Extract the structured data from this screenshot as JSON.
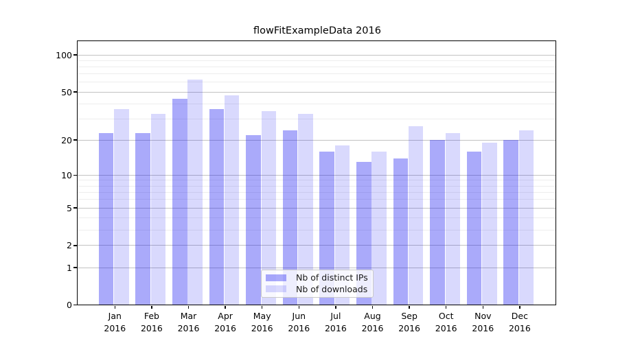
{
  "title": "flowFitExampleData 2016",
  "chart_data": {
    "type": "bar",
    "title": "flowFitExampleData 2016",
    "yscale": "log1p",
    "categories": [
      "Jan",
      "Feb",
      "Mar",
      "Apr",
      "May",
      "Jun",
      "Jul",
      "Aug",
      "Sep",
      "Oct",
      "Nov",
      "Dec"
    ],
    "category_year": "2016",
    "series": [
      {
        "name": "Nb of distinct IPs",
        "values": [
          23,
          23,
          44,
          36,
          22,
          24,
          16,
          13,
          14,
          20,
          16,
          20
        ],
        "color": "rgba(20,20,240,0.36)"
      },
      {
        "name": "Nb of downloads",
        "values": [
          36,
          33,
          63,
          47,
          35,
          33,
          18,
          16,
          26,
          23,
          19,
          24
        ],
        "color": "rgba(20,20,240,0.16)"
      }
    ],
    "yticks": [
      0,
      1,
      2,
      5,
      10,
      20,
      50,
      100
    ],
    "minor_gridlines": [
      3,
      4,
      6,
      7,
      8,
      9,
      30,
      40,
      60,
      70,
      80,
      90
    ],
    "ylim": [
      0,
      130
    ],
    "grid": true,
    "legend_position": "lower center"
  },
  "colors": {
    "major_grid": "#c2c2c2",
    "minor_grid": "#ededed",
    "axis": "#000000",
    "text": "#000000",
    "legend_border": "#c9c9c9"
  }
}
